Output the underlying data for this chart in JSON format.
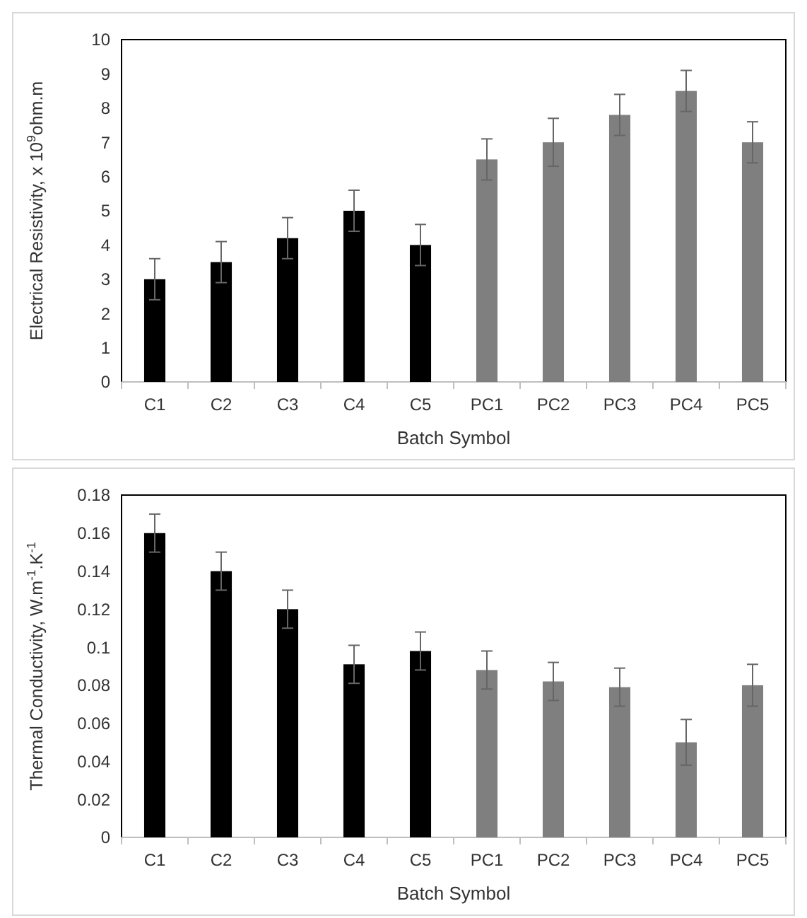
{
  "chart_data": [
    {
      "type": "bar",
      "xlabel": "Batch Symbol",
      "ylabel": "Electrical Resistivity, x 10$^{9}$ohm.m",
      "categories": [
        "C1",
        "C2",
        "C3",
        "C4",
        "C5",
        "PC1",
        "PC2",
        "PC3",
        "PC4",
        "PC5"
      ],
      "values": [
        3,
        3.5,
        4.2,
        5,
        4,
        6.5,
        7,
        7.8,
        8.5,
        7
      ],
      "errors": [
        0.6,
        0.6,
        0.6,
        0.6,
        0.6,
        0.6,
        0.7,
        0.6,
        0.6,
        0.6
      ],
      "colors": [
        "#000000",
        "#000000",
        "#000000",
        "#000000",
        "#000000",
        "#7f7f7f",
        "#7f7f7f",
        "#7f7f7f",
        "#7f7f7f",
        "#7f7f7f"
      ],
      "ylim": [
        0,
        10
      ],
      "yticks": [
        0,
        1,
        2,
        3,
        4,
        5,
        6,
        7,
        8,
        9,
        10
      ],
      "grid": false
    },
    {
      "type": "bar",
      "xlabel": "Batch Symbol",
      "ylabel": "Thermal Conductivity, W.m$^{-1}$.K$^{-1}$",
      "categories": [
        "C1",
        "C2",
        "C3",
        "C4",
        "C5",
        "PC1",
        "PC2",
        "PC3",
        "PC4",
        "PC5"
      ],
      "values": [
        0.16,
        0.14,
        0.12,
        0.091,
        0.098,
        0.088,
        0.082,
        0.079,
        0.05,
        0.08
      ],
      "errors": [
        0.01,
        0.01,
        0.01,
        0.01,
        0.01,
        0.01,
        0.01,
        0.01,
        0.012,
        0.011
      ],
      "colors": [
        "#000000",
        "#000000",
        "#000000",
        "#000000",
        "#000000",
        "#7f7f7f",
        "#7f7f7f",
        "#7f7f7f",
        "#7f7f7f",
        "#7f7f7f"
      ],
      "ylim": [
        0,
        0.18
      ],
      "yticks": [
        0,
        0.02,
        0.04,
        0.06,
        0.08,
        0.1,
        0.12,
        0.14,
        0.16,
        0.18
      ],
      "grid": false
    }
  ]
}
